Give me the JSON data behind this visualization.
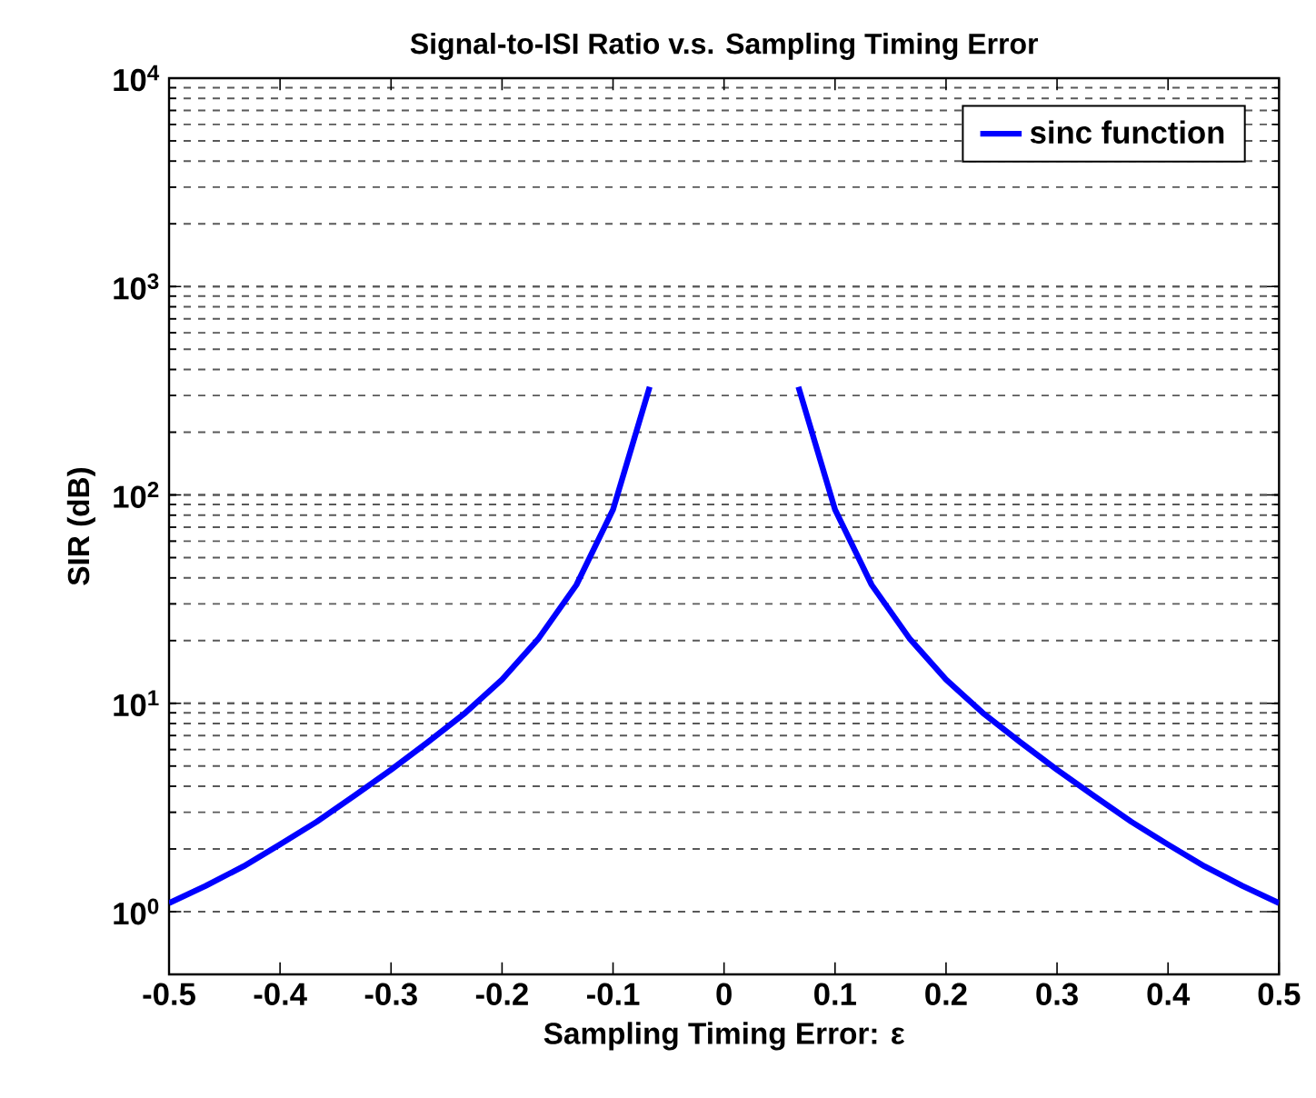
{
  "chart_data": {
    "type": "line",
    "title": "Signal-to-ISI Ratio v.s. Sampling Timing Error",
    "xlabel": "Sampling Timing Error: ε",
    "ylabel": "SIR (dB)",
    "x": [
      -0.5,
      -0.467,
      -0.433,
      -0.4,
      -0.367,
      -0.333,
      -0.3,
      -0.267,
      -0.233,
      -0.2,
      -0.167,
      -0.133,
      -0.1,
      -0.067,
      0,
      0.067,
      0.1,
      0.133,
      0.167,
      0.2,
      0.233,
      0.267,
      0.3,
      0.333,
      0.367,
      0.4,
      0.433,
      0.467,
      0.5
    ],
    "series": [
      {
        "name": "sinc function",
        "color": "#0000ff",
        "values": [
          1.1,
          1.33,
          1.65,
          2.1,
          2.7,
          3.6,
          4.8,
          6.5,
          9,
          13,
          20.5,
          37,
          85,
          330,
          null,
          330,
          85,
          37,
          20.5,
          13,
          9,
          6.5,
          4.8,
          3.6,
          2.7,
          2.1,
          1.65,
          1.33,
          1.1
        ]
      }
    ],
    "log": "y",
    "xlim": [
      -0.5,
      0.5
    ],
    "ylim": [
      0.5,
      10000
    ],
    "xticks": [
      -0.5,
      -0.4,
      -0.3,
      -0.2,
      -0.1,
      0,
      0.1,
      0.2,
      0.3,
      0.4,
      0.5
    ],
    "yticks": [
      {
        "value": 1,
        "label": "10$^{0}$"
      },
      {
        "value": 10,
        "label": "10$^{1}$"
      },
      {
        "value": 100,
        "label": "10$^{2}$"
      },
      {
        "value": 1000,
        "label": "10$^{3}$"
      },
      {
        "value": 10000,
        "label": "10$^{4}$"
      }
    ],
    "grid": "y",
    "legend": "top right",
    "marker": "none",
    "line_style": "solid"
  }
}
